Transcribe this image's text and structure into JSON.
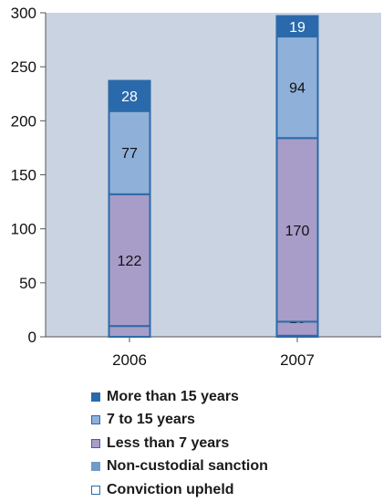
{
  "chart_data": {
    "type": "bar",
    "stacked": true,
    "categories": [
      "2006",
      "2007"
    ],
    "ylim": [
      0,
      300
    ],
    "yticks": [
      0,
      50,
      100,
      150,
      200,
      250,
      300
    ],
    "grid": false,
    "legend_position": "bottom",
    "series": [
      {
        "name": "Conviction upheld",
        "values": [
          0,
          1
        ],
        "labels": [
          "0",
          "1"
        ],
        "color": "#ffffff",
        "stroke": "#2d6aa8",
        "label_color": "#111111"
      },
      {
        "name": "Non-custodial sanction",
        "values": [
          10,
          13
        ],
        "labels": [
          "10",
          "13"
        ],
        "color": "#a79dc8",
        "stroke": "#2d6aa8",
        "label_color": "#111111"
      },
      {
        "name": "Less than 7 years",
        "values": [
          122,
          170
        ],
        "labels": [
          "122",
          "170"
        ],
        "color": "#a79dc8",
        "stroke": "#2d6aa8",
        "label_color": "#111111"
      },
      {
        "name": "7 to 15 years",
        "values": [
          77,
          94
        ],
        "labels": [
          "77",
          "94"
        ],
        "color": "#8fb0d9",
        "stroke": "#2d6aa8",
        "label_color": "#111111"
      },
      {
        "name": "More than 15 years",
        "values": [
          28,
          19
        ],
        "labels": [
          "28",
          "19"
        ],
        "color": "#2a69ac",
        "stroke": "#2d6aa8",
        "label_color": "#ffffff"
      }
    ]
  },
  "legend": {
    "items": [
      {
        "label": "More than 15 years",
        "color": "#2a69ac",
        "border": "#2a69ac"
      },
      {
        "label": "7 to 15 years",
        "color": "#8fb0d9",
        "border": "#2a69ac"
      },
      {
        "label": "Less than 7 years",
        "color": "#a79dc8",
        "border": "#2a69ac"
      },
      {
        "label": "Non-custodial sanction",
        "color": "#6f9ac9",
        "border": "#6f9ac9"
      },
      {
        "label": "Conviction upheld",
        "color": "#ffffff",
        "border": "#2a69ac"
      }
    ]
  },
  "colors": {
    "plot_background": "#c9d3e2",
    "axis": "#555555"
  }
}
